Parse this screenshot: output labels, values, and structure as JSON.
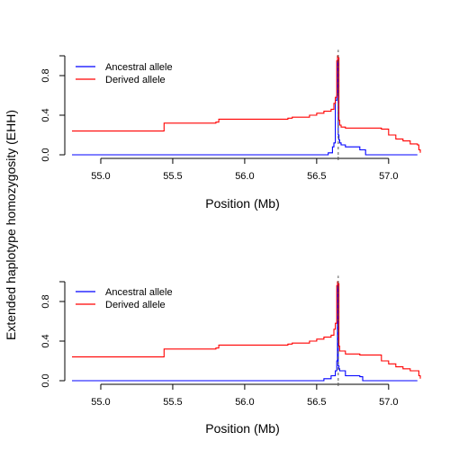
{
  "ylabel_shared": "Extended haplotype homozygosity (EHH)",
  "chart_data": [
    {
      "type": "line",
      "title": "",
      "xlabel": "Position (Mb)",
      "ylabel": "",
      "xlim": [
        54.75,
        57.22
      ],
      "ylim": [
        0,
        1
      ],
      "xticks": [
        55.0,
        55.5,
        56.0,
        56.5,
        57.0
      ],
      "xtick_labels": [
        "55.0",
        "55.5",
        "56.0",
        "56.5",
        "57.0"
      ],
      "yticks": [
        0.0,
        0.4,
        0.8
      ],
      "ytick_labels": [
        "0.0",
        "0.4",
        "0.8"
      ],
      "grid": false,
      "legend_position": "top-left",
      "vline_x": 56.65,
      "series": [
        {
          "name": "Ancestral allele",
          "color": "#0000ff",
          "x": [
            54.8,
            56.0,
            56.58,
            56.61,
            56.62,
            56.63,
            56.64,
            56.645,
            56.65,
            56.655,
            56.66,
            56.67,
            56.7,
            56.8,
            56.84,
            56.85,
            57.2
          ],
          "y": [
            0.0,
            0.0,
            0.02,
            0.08,
            0.12,
            0.55,
            0.6,
            0.96,
            0.2,
            0.15,
            0.12,
            0.1,
            0.08,
            0.05,
            0.0,
            0.0,
            0.0
          ]
        },
        {
          "name": "Derived allele",
          "color": "#ff0000",
          "x": [
            54.8,
            55.43,
            55.44,
            55.8,
            55.82,
            56.3,
            56.33,
            56.45,
            56.5,
            56.55,
            56.6,
            56.62,
            56.63,
            56.64,
            56.645,
            56.65,
            56.655,
            56.66,
            56.67,
            56.7,
            56.8,
            56.95,
            57.0,
            57.05,
            57.1,
            57.15,
            57.2,
            57.21,
            57.22
          ],
          "y": [
            0.24,
            0.24,
            0.32,
            0.33,
            0.36,
            0.37,
            0.38,
            0.4,
            0.42,
            0.44,
            0.46,
            0.52,
            0.58,
            0.95,
            1.0,
            0.98,
            0.35,
            0.3,
            0.28,
            0.27,
            0.27,
            0.26,
            0.2,
            0.16,
            0.14,
            0.11,
            0.1,
            0.05,
            0.02
          ]
        }
      ]
    },
    {
      "type": "line",
      "title": "",
      "xlabel": "Position (Mb)",
      "ylabel": "",
      "xlim": [
        54.75,
        57.22
      ],
      "ylim": [
        0,
        1
      ],
      "xticks": [
        55.0,
        55.5,
        56.0,
        56.5,
        57.0
      ],
      "xtick_labels": [
        "55.0",
        "55.5",
        "56.0",
        "56.5",
        "57.0"
      ],
      "yticks": [
        0.0,
        0.4,
        0.8
      ],
      "ytick_labels": [
        "0.0",
        "0.4",
        "0.8"
      ],
      "grid": false,
      "legend_position": "top-left",
      "vline_x": 56.65,
      "series": [
        {
          "name": "Ancestral allele",
          "color": "#0000ff",
          "x": [
            54.8,
            56.0,
            56.55,
            56.6,
            56.63,
            56.64,
            56.645,
            56.65,
            56.655,
            56.66,
            56.7,
            56.8,
            56.82,
            57.2
          ],
          "y": [
            0.0,
            0.0,
            0.02,
            0.05,
            0.1,
            0.2,
            0.97,
            0.15,
            0.12,
            0.1,
            0.05,
            0.04,
            0.0,
            0.0
          ]
        },
        {
          "name": "Derived allele",
          "color": "#ff0000",
          "x": [
            54.8,
            55.43,
            55.44,
            55.8,
            55.82,
            56.3,
            56.33,
            56.45,
            56.5,
            56.55,
            56.6,
            56.62,
            56.63,
            56.64,
            56.645,
            56.65,
            56.655,
            56.66,
            56.7,
            56.8,
            56.9,
            56.95,
            57.0,
            57.05,
            57.1,
            57.15,
            57.2,
            57.21,
            57.22
          ],
          "y": [
            0.24,
            0.24,
            0.32,
            0.33,
            0.36,
            0.37,
            0.38,
            0.4,
            0.42,
            0.44,
            0.46,
            0.52,
            0.58,
            0.96,
            1.0,
            0.98,
            0.35,
            0.3,
            0.27,
            0.26,
            0.26,
            0.2,
            0.17,
            0.14,
            0.12,
            0.1,
            0.1,
            0.05,
            0.02
          ]
        }
      ]
    }
  ]
}
